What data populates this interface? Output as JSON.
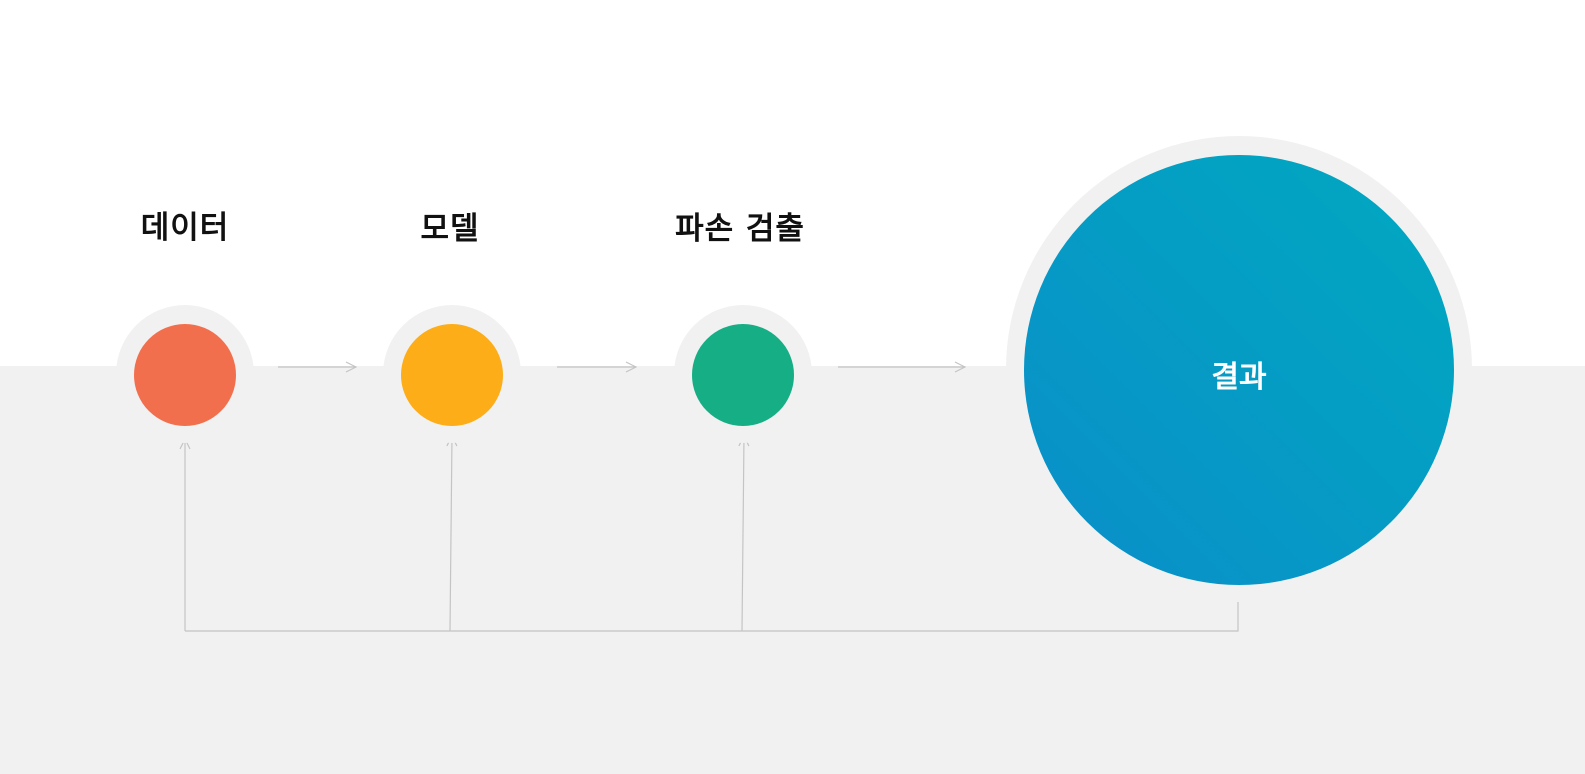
{
  "stages": [
    {
      "label": "데이터",
      "color": "#f26f4e"
    },
    {
      "label": "모델",
      "color": "#fcad17"
    },
    {
      "label": "파손 검출",
      "color": "#15ae85"
    }
  ],
  "result": {
    "label": "결과",
    "gradient_start": "#0a8ec9",
    "gradient_end": "#00a9c0"
  },
  "colors": {
    "background": "#ffffff",
    "band": "#f1f1f1",
    "ring": "#f1f1f1",
    "connector": "#c4c4c4"
  }
}
